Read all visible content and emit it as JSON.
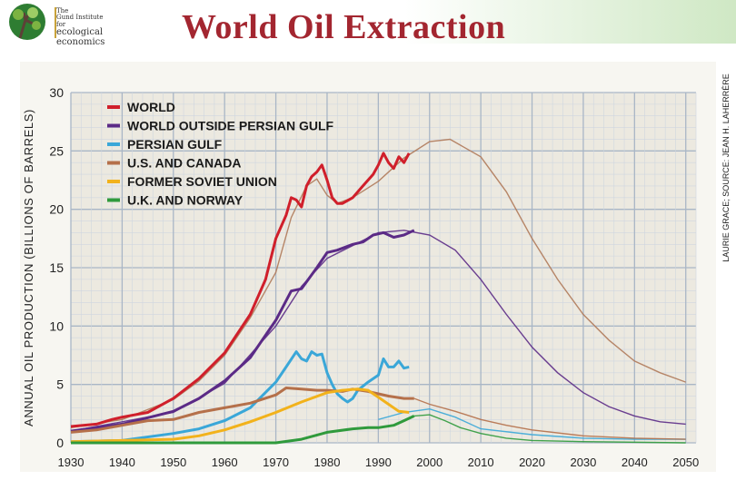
{
  "header": {
    "logo": {
      "line1": "The",
      "line2": "Gund Institute",
      "line3": "for",
      "line4": "ecological",
      "line5": "economics"
    },
    "title": "World Oil Extraction"
  },
  "source_credit": "LAURIE GRACE; SOURCE: JEAN H. LAHERRÈRE",
  "colors": {
    "world": "#d01f2b",
    "world_outside_persian_gulf": "#5b2a86",
    "persian_gulf": "#3aa7d8",
    "us_canada": "#b5704a",
    "former_soviet_union": "#f2b21b",
    "uk_norway": "#2f9a3c",
    "forecast": "#b07a5a",
    "grid": "#a9b6c6",
    "plot_bg": "#ece9e0"
  },
  "chart_data": {
    "type": "line",
    "title": "",
    "ylabel": "ANNUAL OIL PRODUCTION (BILLIONS OF BARRELS)",
    "xlabel": "",
    "xlim": [
      1930,
      2052
    ],
    "ylim": [
      0,
      30
    ],
    "x_ticks": [
      "1930",
      "1940",
      "1950",
      "1960",
      "1970",
      "1980",
      "1990",
      "2000",
      "2010",
      "2020",
      "2030",
      "2040",
      "2050"
    ],
    "y_ticks": [
      "0",
      "5",
      "10",
      "15",
      "20",
      "25",
      "30"
    ],
    "legend_position": "top-left",
    "grid": true,
    "series": [
      {
        "name": "WORLD",
        "color_key": "world",
        "points": [
          [
            1930,
            1.4
          ],
          [
            1935,
            1.6
          ],
          [
            1938,
            2.0
          ],
          [
            1940,
            2.2
          ],
          [
            1945,
            2.6
          ],
          [
            1950,
            3.8
          ],
          [
            1955,
            5.5
          ],
          [
            1960,
            7.7
          ],
          [
            1965,
            11.0
          ],
          [
            1968,
            14.0
          ],
          [
            1970,
            17.5
          ],
          [
            1972,
            19.5
          ],
          [
            1973,
            21.0
          ],
          [
            1974,
            20.8
          ],
          [
            1975,
            20.2
          ],
          [
            1976,
            22.0
          ],
          [
            1977,
            22.8
          ],
          [
            1978,
            23.2
          ],
          [
            1979,
            23.8
          ],
          [
            1980,
            22.5
          ],
          [
            1981,
            21.0
          ],
          [
            1982,
            20.5
          ],
          [
            1983,
            20.5
          ],
          [
            1985,
            21.0
          ],
          [
            1987,
            22.0
          ],
          [
            1989,
            23.0
          ],
          [
            1990,
            23.8
          ],
          [
            1991,
            24.8
          ],
          [
            1992,
            24.0
          ],
          [
            1993,
            23.5
          ],
          [
            1994,
            24.5
          ],
          [
            1995,
            24.0
          ],
          [
            1996,
            24.8
          ]
        ]
      },
      {
        "name": "WORLD OUTSIDE PERSIAN GULF",
        "color_key": "world_outside_persian_gulf",
        "points": [
          [
            1930,
            1.0
          ],
          [
            1940,
            1.6
          ],
          [
            1950,
            2.7
          ],
          [
            1955,
            3.8
          ],
          [
            1960,
            5.3
          ],
          [
            1965,
            7.3
          ],
          [
            1970,
            10.5
          ],
          [
            1973,
            13.0
          ],
          [
            1975,
            13.2
          ],
          [
            1978,
            15.0
          ],
          [
            1980,
            16.3
          ],
          [
            1982,
            16.5
          ],
          [
            1985,
            17.0
          ],
          [
            1987,
            17.2
          ],
          [
            1989,
            17.8
          ],
          [
            1991,
            18.0
          ],
          [
            1993,
            17.6
          ],
          [
            1995,
            17.8
          ],
          [
            1997,
            18.2
          ]
        ]
      },
      {
        "name": "PERSIAN GULF",
        "color_key": "persian_gulf",
        "points": [
          [
            1930,
            0.1
          ],
          [
            1940,
            0.2
          ],
          [
            1950,
            0.8
          ],
          [
            1955,
            1.2
          ],
          [
            1960,
            1.9
          ],
          [
            1965,
            3.0
          ],
          [
            1970,
            5.2
          ],
          [
            1972,
            6.5
          ],
          [
            1974,
            7.8
          ],
          [
            1975,
            7.2
          ],
          [
            1976,
            7.0
          ],
          [
            1977,
            7.8
          ],
          [
            1978,
            7.5
          ],
          [
            1979,
            7.6
          ],
          [
            1980,
            6.0
          ],
          [
            1981,
            5.0
          ],
          [
            1982,
            4.2
          ],
          [
            1983,
            3.8
          ],
          [
            1984,
            3.5
          ],
          [
            1985,
            3.8
          ],
          [
            1986,
            4.5
          ],
          [
            1988,
            5.2
          ],
          [
            1990,
            5.8
          ],
          [
            1991,
            7.2
          ],
          [
            1992,
            6.5
          ],
          [
            1993,
            6.5
          ],
          [
            1994,
            7.0
          ],
          [
            1995,
            6.4
          ],
          [
            1996,
            6.5
          ]
        ]
      },
      {
        "name": "U.S. AND CANADA",
        "color_key": "us_canada",
        "points": [
          [
            1930,
            0.9
          ],
          [
            1935,
            1.1
          ],
          [
            1940,
            1.5
          ],
          [
            1945,
            1.9
          ],
          [
            1950,
            2.0
          ],
          [
            1955,
            2.6
          ],
          [
            1960,
            3.0
          ],
          [
            1965,
            3.4
          ],
          [
            1970,
            4.1
          ],
          [
            1972,
            4.7
          ],
          [
            1975,
            4.6
          ],
          [
            1978,
            4.5
          ],
          [
            1980,
            4.5
          ],
          [
            1983,
            4.4
          ],
          [
            1985,
            4.6
          ],
          [
            1988,
            4.4
          ],
          [
            1990,
            4.2
          ],
          [
            1992,
            4.0
          ],
          [
            1995,
            3.8
          ],
          [
            1997,
            3.8
          ]
        ]
      },
      {
        "name": "FORMER SOVIET UNION",
        "color_key": "former_soviet_union",
        "points": [
          [
            1930,
            0.1
          ],
          [
            1940,
            0.2
          ],
          [
            1950,
            0.3
          ],
          [
            1955,
            0.6
          ],
          [
            1960,
            1.1
          ],
          [
            1965,
            1.8
          ],
          [
            1970,
            2.6
          ],
          [
            1975,
            3.5
          ],
          [
            1980,
            4.3
          ],
          [
            1983,
            4.5
          ],
          [
            1986,
            4.6
          ],
          [
            1988,
            4.5
          ],
          [
            1990,
            3.9
          ],
          [
            1992,
            3.3
          ],
          [
            1994,
            2.7
          ],
          [
            1996,
            2.6
          ]
        ]
      },
      {
        "name": "U.K. AND NORWAY",
        "color_key": "uk_norway",
        "points": [
          [
            1930,
            0
          ],
          [
            1970,
            0
          ],
          [
            1975,
            0.3
          ],
          [
            1980,
            0.9
          ],
          [
            1985,
            1.2
          ],
          [
            1988,
            1.3
          ],
          [
            1990,
            1.3
          ],
          [
            1993,
            1.5
          ],
          [
            1995,
            1.9
          ],
          [
            1997,
            2.3
          ]
        ]
      }
    ],
    "forecast_series": [
      {
        "color_key": "forecast",
        "points": [
          [
            1930,
            1.3
          ],
          [
            1940,
            2.0
          ],
          [
            1950,
            3.7
          ],
          [
            1955,
            5.3
          ],
          [
            1960,
            7.5
          ],
          [
            1965,
            10.7
          ],
          [
            1970,
            14.6
          ],
          [
            1973,
            19.3
          ],
          [
            1976,
            22.0
          ],
          [
            1978,
            22.6
          ],
          [
            1980,
            21.2
          ],
          [
            1982,
            20.5
          ],
          [
            1985,
            21.0
          ],
          [
            1990,
            22.4
          ],
          [
            1995,
            24.4
          ],
          [
            2000,
            25.8
          ],
          [
            2004,
            26.0
          ],
          [
            2010,
            24.5
          ],
          [
            2015,
            21.5
          ],
          [
            2020,
            17.5
          ],
          [
            2025,
            14.0
          ],
          [
            2030,
            11.0
          ],
          [
            2035,
            8.8
          ],
          [
            2040,
            7.0
          ],
          [
            2045,
            6.0
          ],
          [
            2050,
            5.2
          ]
        ]
      },
      {
        "color_key": "world_outside_persian_gulf",
        "points": [
          [
            1930,
            1.0
          ],
          [
            1950,
            2.6
          ],
          [
            1960,
            5.1
          ],
          [
            1970,
            10.0
          ],
          [
            1975,
            13.4
          ],
          [
            1980,
            15.8
          ],
          [
            1985,
            16.9
          ],
          [
            1990,
            18.0
          ],
          [
            1995,
            18.2
          ],
          [
            2000,
            17.8
          ],
          [
            2005,
            16.5
          ],
          [
            2010,
            14.0
          ],
          [
            2015,
            11.0
          ],
          [
            2020,
            8.2
          ],
          [
            2025,
            6.0
          ],
          [
            2030,
            4.3
          ],
          [
            2035,
            3.1
          ],
          [
            2040,
            2.3
          ],
          [
            2045,
            1.8
          ],
          [
            2050,
            1.6
          ]
        ]
      },
      {
        "color_key": "persian_gulf",
        "points": [
          [
            1990,
            2.0
          ],
          [
            1995,
            2.6
          ],
          [
            2000,
            2.9
          ],
          [
            2005,
            2.2
          ],
          [
            2010,
            1.2
          ],
          [
            2020,
            0.7
          ],
          [
            2030,
            0.4
          ],
          [
            2040,
            0.3
          ],
          [
            2050,
            0.3
          ]
        ]
      },
      {
        "color_key": "us_canada",
        "points": [
          [
            1997,
            3.8
          ],
          [
            2000,
            3.3
          ],
          [
            2005,
            2.7
          ],
          [
            2010,
            2.0
          ],
          [
            2015,
            1.5
          ],
          [
            2020,
            1.1
          ],
          [
            2030,
            0.6
          ],
          [
            2040,
            0.4
          ],
          [
            2050,
            0.3
          ]
        ]
      },
      {
        "color_key": "uk_norway",
        "points": [
          [
            1997,
            2.3
          ],
          [
            2000,
            2.4
          ],
          [
            2003,
            1.9
          ],
          [
            2006,
            1.3
          ],
          [
            2010,
            0.8
          ],
          [
            2015,
            0.4
          ],
          [
            2020,
            0.2
          ],
          [
            2030,
            0.1
          ],
          [
            2050,
            0
          ]
        ]
      }
    ]
  }
}
